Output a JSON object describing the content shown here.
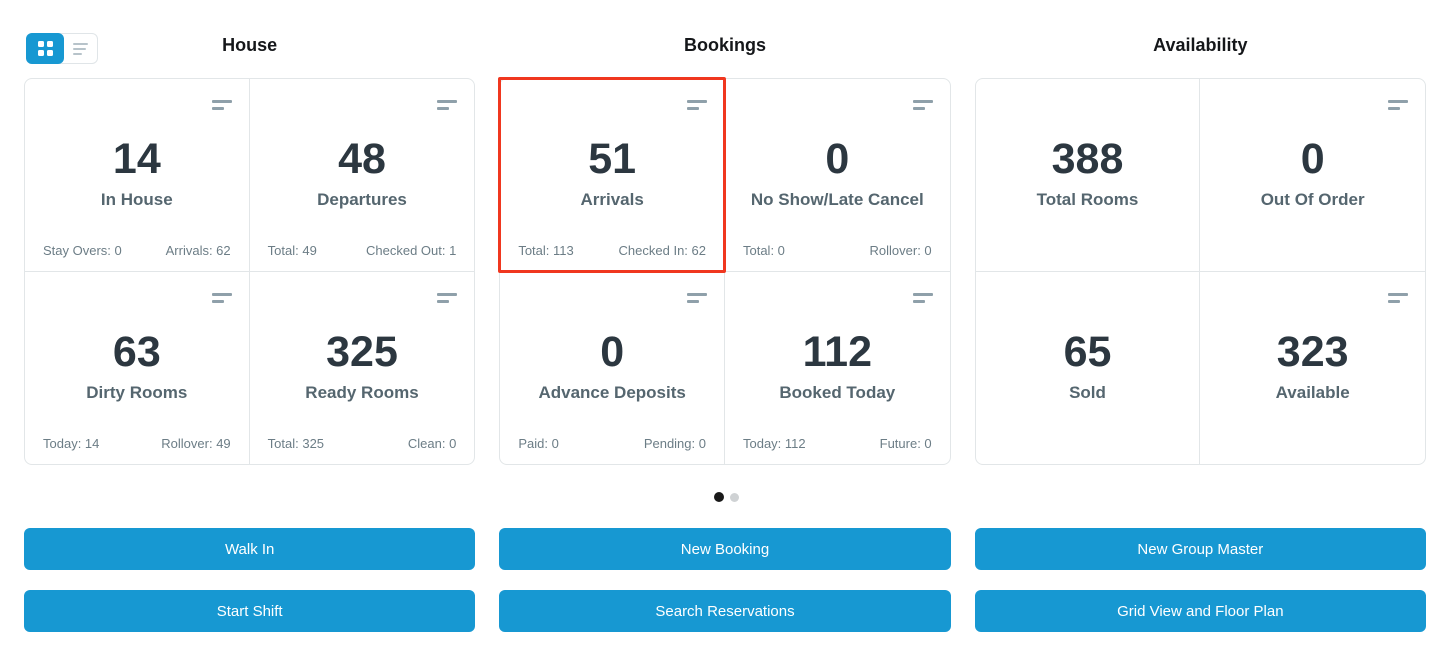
{
  "colors": {
    "accent_blue": "#1798d2",
    "highlight_red": "#f0371f",
    "value_text": "#2c3740",
    "label_text": "#55666f",
    "dot_active": "#191919",
    "dot_inactive": "#cfd2d4"
  },
  "view_toggle": {
    "active_view": "grid",
    "options": [
      "grid",
      "list"
    ]
  },
  "sections": [
    {
      "title": "House",
      "cards": [
        {
          "value": "14",
          "label": "In House",
          "footer_left": "Stay Overs: 0",
          "footer_right": "Arrivals: 62",
          "menu_icon": true,
          "highlighted": false
        },
        {
          "value": "48",
          "label": "Departures",
          "footer_left": "Total: 49",
          "footer_right": "Checked Out: 1",
          "menu_icon": true,
          "highlighted": false
        },
        {
          "value": "63",
          "label": "Dirty Rooms",
          "footer_left": "Today: 14",
          "footer_right": "Rollover: 49",
          "menu_icon": true,
          "highlighted": false
        },
        {
          "value": "325",
          "label": "Ready Rooms",
          "footer_left": "Total: 325",
          "footer_right": "Clean: 0",
          "menu_icon": true,
          "highlighted": false
        }
      ],
      "buttons": [
        "Walk In",
        "Start Shift"
      ]
    },
    {
      "title": "Bookings",
      "cards": [
        {
          "value": "51",
          "label": "Arrivals",
          "footer_left": "Total: 113",
          "footer_right": "Checked In: 62",
          "menu_icon": true,
          "highlighted": true
        },
        {
          "value": "0",
          "label": "No Show/Late Cancel",
          "footer_left": "Total: 0",
          "footer_right": "Rollover: 0",
          "menu_icon": true,
          "highlighted": false
        },
        {
          "value": "0",
          "label": "Advance Deposits",
          "footer_left": "Paid: 0",
          "footer_right": "Pending: 0",
          "menu_icon": true,
          "highlighted": false
        },
        {
          "value": "112",
          "label": "Booked Today",
          "footer_left": "Today: 112",
          "footer_right": "Future: 0",
          "menu_icon": true,
          "highlighted": false
        }
      ],
      "buttons": [
        "New Booking",
        "Search Reservations"
      ]
    },
    {
      "title": "Availability",
      "cards": [
        {
          "value": "388",
          "label": "Total Rooms",
          "menu_icon": false,
          "highlighted": false
        },
        {
          "value": "0",
          "label": "Out Of Order",
          "menu_icon": true,
          "highlighted": false
        },
        {
          "value": "65",
          "label": "Sold",
          "menu_icon": false,
          "highlighted": false
        },
        {
          "value": "323",
          "label": "Available",
          "menu_icon": true,
          "highlighted": false
        }
      ],
      "buttons": [
        "New Group Master",
        "Grid View and Floor Plan"
      ]
    }
  ],
  "pagination": {
    "count": 2,
    "active_index": 0
  }
}
